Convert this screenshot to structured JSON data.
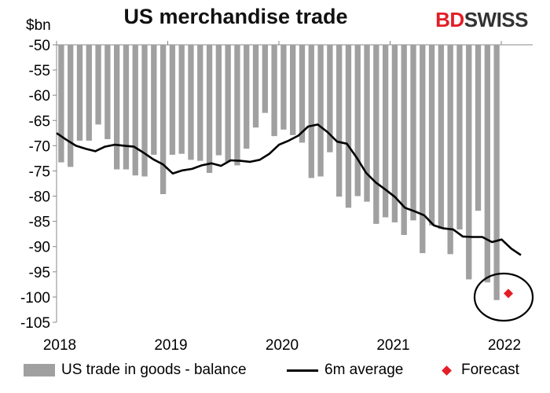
{
  "header": {
    "title": "US merchandise trade",
    "logo_part1": "BD",
    "logo_part2": "SWISS"
  },
  "chart_data": {
    "type": "bar",
    "title": "US merchandise trade",
    "ylabel": "$bn",
    "ylim": [
      -105,
      -50
    ],
    "yticks": [
      -50,
      -55,
      -60,
      -65,
      -70,
      -75,
      -80,
      -85,
      -90,
      -95,
      -100,
      -105
    ],
    "xticks": [
      "2018",
      "2019",
      "2020",
      "2021",
      "2022"
    ],
    "inverted_bars": true,
    "grid": false,
    "legend_position": "bottom",
    "series": [
      {
        "name": "US trade in goods - balance",
        "kind": "bar",
        "color": "#a0a0a0",
        "values": [
          -73.3,
          -74.2,
          -69.0,
          -69.0,
          -65.8,
          -68.7,
          -74.7,
          -74.7,
          -75.9,
          -76.1,
          -71.8,
          -79.6,
          -71.8,
          -71.6,
          -72.8,
          -73.0,
          -75.4,
          -71.9,
          -73.2,
          -73.9,
          -70.6,
          -66.4,
          -63.5,
          -68.1,
          -66.8,
          -67.9,
          -69.4,
          -76.4,
          -76.1,
          -71.3,
          -80.1,
          -82.3,
          -80.0,
          -81.1,
          -85.5,
          -84.2,
          -85.2,
          -87.7,
          -84.8,
          -91.3,
          -85.8,
          -86.5,
          -91.5,
          -86.6,
          -96.5,
          -82.9,
          -97.1,
          -100.6
        ]
      },
      {
        "name": "6m average",
        "kind": "line",
        "color": "#000000",
        "values": [
          -67.5,
          -68.8,
          -70.0,
          -70.6,
          -71.1,
          -70.2,
          -69.8,
          -70.0,
          -70.2,
          -71.4,
          -72.7,
          -73.7,
          -75.5,
          -74.9,
          -74.6,
          -73.9,
          -73.5,
          -74.0,
          -72.9,
          -73.0,
          -73.2,
          -72.8,
          -71.6,
          -69.8,
          -69.0,
          -68.0,
          -66.2,
          -65.8,
          -67.3,
          -69.2,
          -69.6,
          -72.3,
          -75.4,
          -77.3,
          -78.7,
          -80.2,
          -82.3,
          -83.0,
          -83.8,
          -85.8,
          -86.4,
          -86.6,
          -88.0,
          -88.1,
          -88.1,
          -89.1,
          -88.6,
          -90.4,
          -91.7
        ]
      },
      {
        "name": "Forecast",
        "kind": "marker",
        "color": "#e31e25",
        "values": [
          -99.3
        ]
      }
    ],
    "annotations": [
      {
        "type": "circle",
        "around": "Forecast"
      }
    ]
  }
}
